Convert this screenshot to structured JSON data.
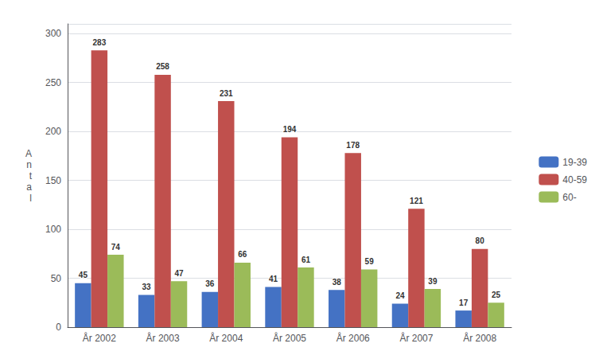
{
  "chart_data": {
    "type": "bar",
    "categories": [
      "År 2002",
      "År 2003",
      "År 2004",
      "År 2005",
      "År 2006",
      "År 2007",
      "År 2008"
    ],
    "series": [
      {
        "name": "19-39",
        "color": "#4472C4",
        "values": [
          45,
          33,
          36,
          41,
          38,
          24,
          17
        ]
      },
      {
        "name": "40-59",
        "color": "#C0504D",
        "values": [
          283,
          258,
          231,
          194,
          178,
          121,
          80
        ]
      },
      {
        "name": "60-",
        "color": "#9BBB59",
        "values": [
          74,
          47,
          66,
          61,
          59,
          39,
          25
        ]
      }
    ],
    "ylabel": "A\nn\nt\na\nl",
    "ylim": [
      0,
      310
    ],
    "yticks": [
      0,
      50,
      100,
      150,
      200,
      250,
      300
    ],
    "grid": true,
    "legend": "right",
    "data_labels": true
  }
}
